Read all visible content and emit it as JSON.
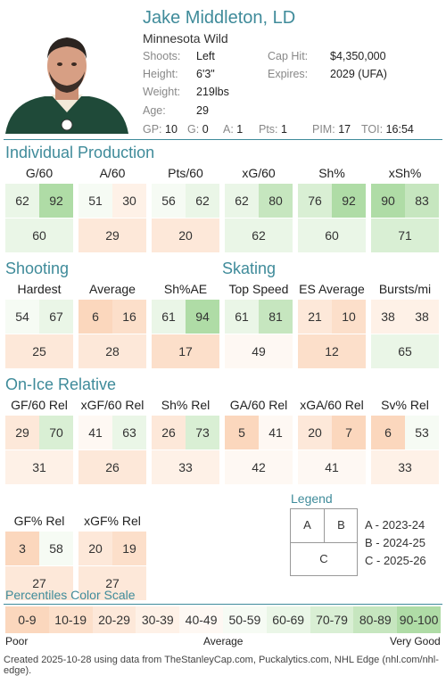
{
  "player": {
    "name": "Jake Middleton, LD",
    "team": "Minnesota Wild",
    "shoots_label": "Shoots:",
    "shoots": "Left",
    "height_label": "Height:",
    "height": "6'3\"",
    "weight_label": "Weight:",
    "weight": "219lbs",
    "age_label": "Age:",
    "age": "29",
    "cap_label": "Cap Hit:",
    "cap": "$4,350,000",
    "expires_label": "Expires:",
    "expires": "2029 (UFA)"
  },
  "stats": {
    "gp_label": "GP:",
    "gp": "10",
    "g_label": "G:",
    "g": "0",
    "a_label": "A:",
    "a": "1",
    "pts_label": "Pts:",
    "pts": "1",
    "pim_label": "PIM:",
    "pim": "17",
    "toi_label": "TOI:",
    "toi": "16:54"
  },
  "sections": {
    "individual_production": "Individual Production",
    "shooting": "Shooting",
    "skating": "Skating",
    "on_ice_relative": "On-Ice Relative",
    "percentiles_scale": "Percentiles Color Scale"
  },
  "individual": [
    {
      "label": "G/60",
      "a": "62",
      "b": "92",
      "c": "60"
    },
    {
      "label": "A/60",
      "a": "51",
      "b": "30",
      "c": "29"
    },
    {
      "label": "Pts/60",
      "a": "56",
      "b": "62",
      "c": "20"
    },
    {
      "label": "xG/60",
      "a": "62",
      "b": "80",
      "c": "62"
    },
    {
      "label": "Sh%",
      "a": "76",
      "b": "92",
      "c": "60"
    },
    {
      "label": "xSh%",
      "a": "90",
      "b": "83",
      "c": "71"
    }
  ],
  "shooting_skating": [
    {
      "label": "Hardest",
      "a": "54",
      "b": "67",
      "c": "25"
    },
    {
      "label": "Average",
      "a": "6",
      "b": "16",
      "c": "28"
    },
    {
      "label": "Sh%AE",
      "a": "61",
      "b": "94",
      "c": "17"
    },
    {
      "label": "Top Speed",
      "a": "61",
      "b": "81",
      "c": "49"
    },
    {
      "label": "ES Average",
      "a": "21",
      "b": "10",
      "c": "12"
    },
    {
      "label": "Bursts/mi",
      "a": "38",
      "b": "38",
      "c": "65"
    }
  ],
  "on_ice": [
    {
      "label": "GF/60 Rel",
      "a": "29",
      "b": "70",
      "c": "31"
    },
    {
      "label": "xGF/60 Rel",
      "a": "41",
      "b": "63",
      "c": "26"
    },
    {
      "label": "Sh% Rel",
      "a": "26",
      "b": "73",
      "c": "33"
    },
    {
      "label": "GA/60 Rel",
      "a": "5",
      "b": "41",
      "c": "42"
    },
    {
      "label": "xGA/60 Rel",
      "a": "20",
      "b": "7",
      "c": "41"
    },
    {
      "label": "Sv% Rel",
      "a": "6",
      "b": "53",
      "c": "33"
    },
    {
      "label": "GF% Rel",
      "a": "3",
      "b": "58",
      "c": "27"
    },
    {
      "label": "xGF% Rel",
      "a": "20",
      "b": "19",
      "c": "27"
    }
  ],
  "legend": {
    "title": "Legend",
    "a": "A",
    "b": "B",
    "c": "C",
    "a_text": "A - 2023-24",
    "b_text": "B - 2024-25",
    "c_text": "C - 2025-26"
  },
  "scale": {
    "bins": [
      "0-9",
      "10-19",
      "20-29",
      "30-39",
      "40-49",
      "50-59",
      "60-69",
      "70-79",
      "80-89",
      "90-100"
    ],
    "colors": [
      "#fbd7bd",
      "#fcdfca",
      "#fde8d9",
      "#fef1e7",
      "#fef8f3",
      "#f6fbf4",
      "#eaf6e7",
      "#d9efd4",
      "#c6e6bf",
      "#afdca6"
    ],
    "poor": "Poor",
    "average": "Average",
    "very_good": "Very Good"
  },
  "footer": "Created 2025-10-28 using data from TheStanleyCap.com, Puckalytics.com, NHL Edge (nhl.com/nhl-edge)."
}
